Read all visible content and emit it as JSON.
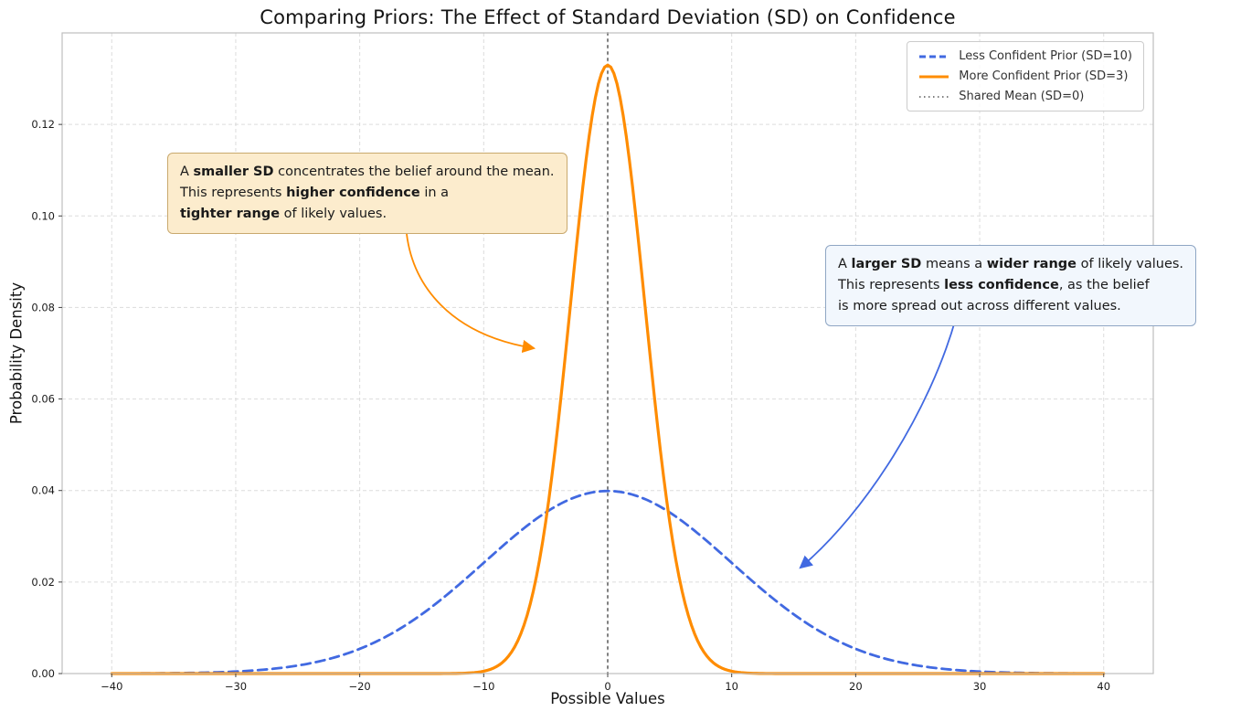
{
  "title": "Comparing Priors: The Effect of Standard Deviation (SD) on Confidence",
  "axes": {
    "xlabel": "Possible Values",
    "ylabel": "Probability Density"
  },
  "legend": {
    "items": [
      {
        "label": "Less Confident Prior (SD=10)",
        "color": "#4169e1",
        "style": "dashed"
      },
      {
        "label": "More Confident Prior (SD=3)",
        "color": "#ff8c00",
        "style": "solid"
      },
      {
        "label": "Shared Mean (SD=0)",
        "color": "#808080",
        "style": "dotted"
      }
    ]
  },
  "chart_data": {
    "type": "line",
    "title": "Comparing Priors: The Effect of Standard Deviation (SD) on Confidence",
    "xlabel": "Possible Values",
    "ylabel": "Probability Density",
    "xlim": [
      -44,
      44
    ],
    "ylim": [
      0,
      0.14
    ],
    "x_range": [
      -40,
      40
    ],
    "x_ticks": [
      -40,
      -30,
      -20,
      -10,
      0,
      10,
      20,
      30,
      40
    ],
    "x_tick_labels": [
      "−40",
      "−30",
      "−20",
      "−10",
      "0",
      "10",
      "20",
      "30",
      "40"
    ],
    "y_ticks": [
      0.0,
      0.02,
      0.04,
      0.06,
      0.08,
      0.1,
      0.12
    ],
    "y_tick_labels": [
      "0.00",
      "0.02",
      "0.04",
      "0.06",
      "0.08",
      "0.10",
      "0.12"
    ],
    "grid": true,
    "legend_position": "upper right",
    "series": [
      {
        "name": "Less Confident Prior (SD=10)",
        "distribution": "normal",
        "mean": 0,
        "sd": 10,
        "peak_density": 0.0399,
        "color": "#4169e1",
        "line_style": "dashed",
        "y_at_x_ticks": [
          1.34e-05,
          0.000443,
          0.0054,
          0.0242,
          0.0399,
          0.0242,
          0.0054,
          0.000443,
          1.34e-05
        ]
      },
      {
        "name": "More Confident Prior (SD=3)",
        "distribution": "normal",
        "mean": 0,
        "sd": 3,
        "peak_density": 0.133,
        "color": "#ff8c00",
        "line_style": "solid",
        "y_at_x_ticks": [
          0.0,
          0.0,
          0.0,
          0.000514,
          0.133,
          0.000514,
          0.0,
          0.0,
          0.0
        ]
      }
    ],
    "reference_line": {
      "name": "Shared Mean (SD=0)",
      "x": 0,
      "color": "#808080",
      "line_style": "dotted"
    }
  },
  "annotations": [
    {
      "id": "smaller-sd",
      "bg": "#fceccd",
      "border": "#c9a96e",
      "arrow_color": "#ff8c00",
      "lines": [
        [
          {
            "text": "A ",
            "bold": false
          },
          {
            "text": "smaller SD",
            "bold": true
          },
          {
            "text": " concentrates the belief around the mean.",
            "bold": false
          }
        ],
        [
          {
            "text": "This represents ",
            "bold": false
          },
          {
            "text": "higher confidence",
            "bold": true
          },
          {
            "text": " in a",
            "bold": false
          }
        ],
        [
          {
            "text": "tighter range",
            "bold": true
          },
          {
            "text": " of likely values.",
            "bold": false
          }
        ]
      ]
    },
    {
      "id": "larger-sd",
      "bg": "#f2f7fd",
      "border": "#8fa6c4",
      "arrow_color": "#4169e1",
      "lines": [
        [
          {
            "text": "A ",
            "bold": false
          },
          {
            "text": "larger SD",
            "bold": true
          },
          {
            "text": " means a ",
            "bold": false
          },
          {
            "text": "wider range",
            "bold": true
          },
          {
            "text": " of likely values.",
            "bold": false
          }
        ],
        [
          {
            "text": "This represents ",
            "bold": false
          },
          {
            "text": "less confidence",
            "bold": true
          },
          {
            "text": ", as the belief",
            "bold": false
          }
        ],
        [
          {
            "text": "is more spread out across different values.",
            "bold": false
          }
        ]
      ]
    }
  ]
}
